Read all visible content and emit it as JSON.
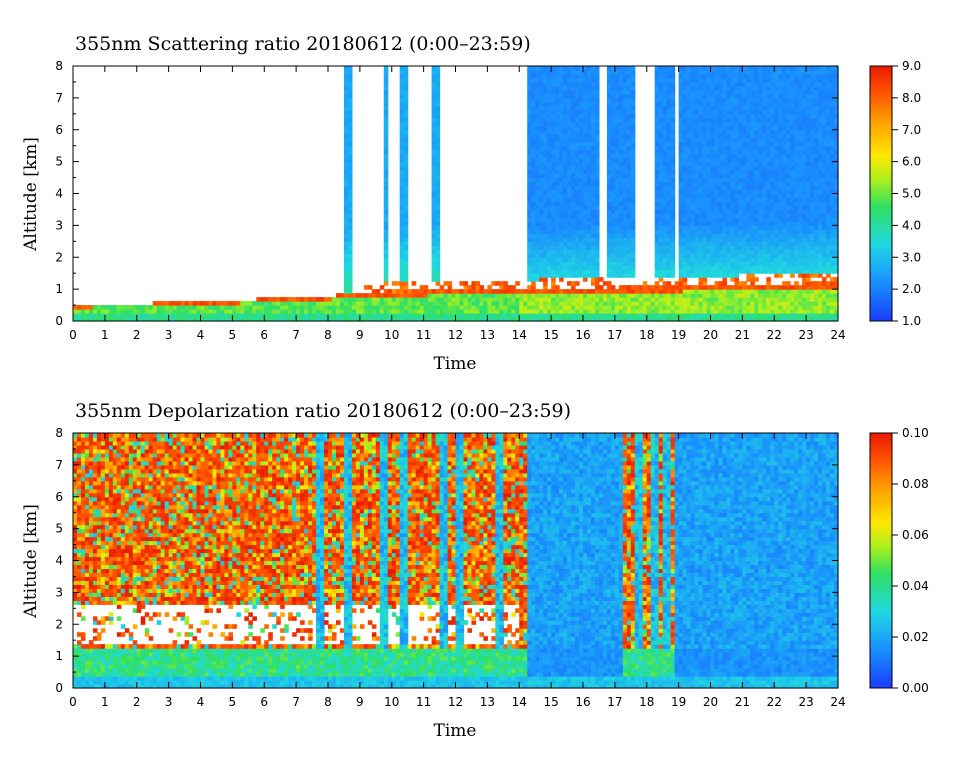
{
  "chart_data": [
    {
      "type": "heatmap",
      "title": "355nm Scattering ratio  20180612 (0:00–23:59)",
      "xlabel": "Time",
      "ylabel": "Altitude [km]",
      "xlim": [
        0,
        24
      ],
      "ylim": [
        0,
        8
      ],
      "x_ticks": [
        "0",
        "1",
        "2",
        "3",
        "4",
        "5",
        "6",
        "7",
        "8",
        "9",
        "10",
        "11",
        "12",
        "13",
        "14",
        "15",
        "16",
        "17",
        "18",
        "19",
        "20",
        "21",
        "22",
        "23",
        "24"
      ],
      "y_ticks": [
        "0",
        "1",
        "2",
        "3",
        "4",
        "5",
        "6",
        "7",
        "8"
      ],
      "colorbar": {
        "range": [
          1.0,
          9.0
        ],
        "ticks": [
          "1.0",
          "2.0",
          "3.0",
          "4.0",
          "5.0",
          "6.0",
          "7.0",
          "8.0",
          "9.0"
        ]
      },
      "features": {
        "near_surface_layer_top_km": [
          [
            0,
            0.5
          ],
          [
            4,
            0.6
          ],
          [
            8,
            0.8
          ],
          [
            12,
            1.0
          ],
          [
            14,
            1.0
          ],
          [
            19,
            1.1
          ],
          [
            24,
            1.2
          ]
        ],
        "cloud_columns_hours": [
          [
            8.5,
            8.7
          ],
          [
            9.8,
            9.9
          ],
          [
            10.3,
            10.5
          ],
          [
            11.2,
            11.5
          ],
          [
            14.3,
            16.5
          ],
          [
            16.7,
            17.6
          ],
          [
            18.2,
            18.9
          ],
          [
            19.0,
            24.0
          ]
        ],
        "typical_value_above_layer": 2.0
      }
    },
    {
      "type": "heatmap",
      "title": "355nm Depolarization ratio  20180612 (0:00–23:59)",
      "xlabel": "Time",
      "ylabel": "Altitude [km]",
      "xlim": [
        0,
        24
      ],
      "ylim": [
        0,
        8
      ],
      "x_ticks": [
        "0",
        "1",
        "2",
        "3",
        "4",
        "5",
        "6",
        "7",
        "8",
        "9",
        "10",
        "11",
        "12",
        "13",
        "14",
        "15",
        "16",
        "17",
        "18",
        "19",
        "20",
        "21",
        "22",
        "23",
        "24"
      ],
      "y_ticks": [
        "0",
        "1",
        "2",
        "3",
        "4",
        "5",
        "6",
        "7",
        "8"
      ],
      "colorbar": {
        "range": [
          0.0,
          0.1
        ],
        "ticks": [
          "0.00",
          "0.02",
          "0.04",
          "0.06",
          "0.08",
          "0.10"
        ]
      },
      "features": {
        "noisy_high_region_hours": [
          [
            0,
            14.3
          ],
          [
            17.2,
            18.9
          ]
        ],
        "low_region_hours": [
          [
            14.3,
            17.2
          ],
          [
            18.9,
            24
          ]
        ],
        "dust_layer_km": [
          1.4,
          2.6
        ],
        "typical_value_low_region": 0.015
      }
    }
  ]
}
